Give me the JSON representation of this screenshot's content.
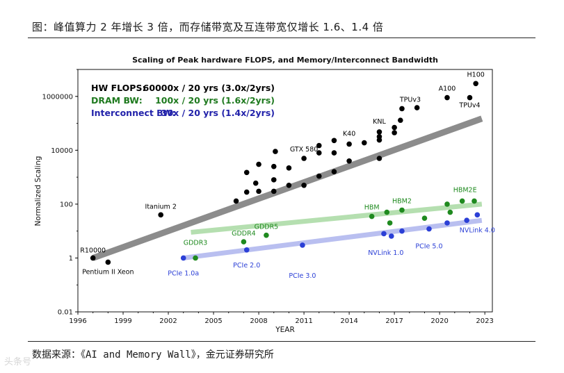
{
  "caption": "图：峰值算力 2 年增长 3 倍，而存储带宽及互连带宽仅增长 1.6、1.4 倍",
  "source": "数据来源：《AI and Memory Wall》，金元证券研究所",
  "watermark": "头条号",
  "chart_data": {
    "type": "scatter",
    "title": "Scaling of Peak hardware FLOPS, and Memory/Interconnect Bandwidth",
    "xlabel": "YEAR",
    "ylabel": "Normalized Scaling",
    "xlim": [
      1996,
      2023.5
    ],
    "ylim": [
      0.01,
      10000000
    ],
    "yscale": "log",
    "xticks": [
      1996,
      1999,
      2002,
      2005,
      2008,
      2011,
      2014,
      2017,
      2020,
      2023
    ],
    "yticks": [
      {
        "value": 0.01,
        "label": "0.01"
      },
      {
        "value": 1,
        "label": "1"
      },
      {
        "value": 100,
        "label": "100"
      },
      {
        "value": 10000,
        "label": "10000"
      },
      {
        "value": 1000000,
        "label": "1000000"
      }
    ],
    "legend": [
      {
        "label": "HW FLOPS:",
        "value": "60000x / 20 yrs (3.0x/2yrs)",
        "color": "#000000"
      },
      {
        "label": "DRAM BW:",
        "value": "100x / 20 yrs (1.6x/2yrs)",
        "color": "#1f7a1f"
      },
      {
        "label": "Interconnect BW:",
        "value": "30x / 20 yrs (1.4x/2yrs)",
        "color": "#2222aa"
      }
    ],
    "series": [
      {
        "name": "HW FLOPS",
        "color": "#000000",
        "trend_color": "#8c8c8c",
        "trend": [
          [
            1997,
            1
          ],
          [
            2022.8,
            150000
          ]
        ],
        "points": [
          {
            "x": 1997,
            "y": 1,
            "label": "R10000",
            "dx": 0,
            "dy": -8,
            "anchor": "middle"
          },
          {
            "x": 1998,
            "y": 0.7,
            "label": "Pentium II Xeon",
            "dx": 0,
            "dy": 17,
            "anchor": "middle"
          },
          {
            "x": 2001.5,
            "y": 40,
            "label": "Itanium 2",
            "dx": 0,
            "dy": -9,
            "anchor": "middle"
          },
          {
            "x": 2006.5,
            "y": 130
          },
          {
            "x": 2007.2,
            "y": 280
          },
          {
            "x": 2007.2,
            "y": 1500
          },
          {
            "x": 2007.8,
            "y": 600
          },
          {
            "x": 2008,
            "y": 300
          },
          {
            "x": 2008,
            "y": 3000
          },
          {
            "x": 2009,
            "y": 800
          },
          {
            "x": 2009,
            "y": 2500
          },
          {
            "x": 2009,
            "y": 300
          },
          {
            "x": 2009.1,
            "y": 9000
          },
          {
            "x": 2010,
            "y": 2200
          },
          {
            "x": 2010,
            "y": 500
          },
          {
            "x": 2011,
            "y": 5000,
            "label": "GTX 580",
            "dx": 0,
            "dy": -10,
            "anchor": "middle"
          },
          {
            "x": 2011,
            "y": 500
          },
          {
            "x": 2012,
            "y": 8000
          },
          {
            "x": 2012,
            "y": 15000
          },
          {
            "x": 2012,
            "y": 1100
          },
          {
            "x": 2013,
            "y": 8000
          },
          {
            "x": 2013,
            "y": 23000
          },
          {
            "x": 2013,
            "y": 1600
          },
          {
            "x": 2014,
            "y": 17000,
            "label": "K40",
            "dx": 0,
            "dy": -12,
            "anchor": "middle"
          },
          {
            "x": 2014,
            "y": 4000
          },
          {
            "x": 2015,
            "y": 19000
          },
          {
            "x": 2016,
            "y": 48000,
            "label": "KNL",
            "dx": 0,
            "dy": -12,
            "anchor": "middle"
          },
          {
            "x": 2016,
            "y": 32000
          },
          {
            "x": 2016,
            "y": 24000
          },
          {
            "x": 2016,
            "y": 5000
          },
          {
            "x": 2017,
            "y": 70000
          },
          {
            "x": 2017,
            "y": 45000
          },
          {
            "x": 2017.4,
            "y": 130000
          },
          {
            "x": 2017.5,
            "y": 350000,
            "label": "TPUv3",
            "dx": 12,
            "dy": -10,
            "anchor": "middle"
          },
          {
            "x": 2018.5,
            "y": 380000
          },
          {
            "x": 2020.5,
            "y": 900000,
            "label": "A100",
            "dx": 0,
            "dy": -10,
            "anchor": "middle"
          },
          {
            "x": 2022,
            "y": 900000,
            "label": "TPUv4",
            "dx": 0,
            "dy": 14,
            "anchor": "middle"
          },
          {
            "x": 2022.4,
            "y": 3000000,
            "label": "H100",
            "dx": 0,
            "dy": -10,
            "anchor": "middle"
          }
        ]
      },
      {
        "name": "DRAM BW",
        "color": "#1f8a1f",
        "trend_color": "#b5dfb0",
        "trend": [
          [
            2003.5,
            9
          ],
          [
            2022.8,
            100
          ]
        ],
        "points": [
          {
            "x": 2003.8,
            "y": 1,
            "label": "GDDR3",
            "dx": 0,
            "dy": -19,
            "anchor": "middle"
          },
          {
            "x": 2007,
            "y": 4,
            "label": "GDDR4",
            "dx": 0,
            "dy": -9,
            "anchor": "middle"
          },
          {
            "x": 2008.5,
            "y": 7,
            "label": "GDDR5",
            "dx": 0,
            "dy": -9,
            "anchor": "middle"
          },
          {
            "x": 2015.5,
            "y": 35,
            "label": "HBM",
            "dx": 0,
            "dy": -10,
            "anchor": "middle"
          },
          {
            "x": 2016.5,
            "y": 50
          },
          {
            "x": 2016.7,
            "y": 20
          },
          {
            "x": 2017.5,
            "y": 60,
            "label": "HBM2",
            "dx": 0,
            "dy": -10,
            "anchor": "middle"
          },
          {
            "x": 2019,
            "y": 30
          },
          {
            "x": 2020.5,
            "y": 100
          },
          {
            "x": 2020.7,
            "y": 50
          },
          {
            "x": 2021.5,
            "y": 130,
            "label": "HBM2E",
            "dx": 4,
            "dy": -13,
            "anchor": "middle"
          },
          {
            "x": 2022.3,
            "y": 130
          }
        ]
      },
      {
        "name": "Interconnect BW",
        "color": "#2b3fd6",
        "trend_color": "#b9bff0",
        "trend": [
          [
            2003,
            1
          ],
          [
            2022.8,
            25
          ]
        ],
        "points": [
          {
            "x": 2003,
            "y": 1,
            "label": "PCIe 1.0a",
            "dx": 0,
            "dy": 25,
            "anchor": "middle"
          },
          {
            "x": 2007.2,
            "y": 2,
            "label": "PCIe 2.0",
            "dx": 0,
            "dy": 25,
            "anchor": "middle"
          },
          {
            "x": 2010.9,
            "y": 3,
            "label": "PCIe 3.0",
            "dx": 0,
            "dy": 47,
            "anchor": "middle"
          },
          {
            "x": 2016.3,
            "y": 8
          },
          {
            "x": 2016.8,
            "y": 6.5,
            "label": "NVLink 1.0",
            "dx": -8,
            "dy": 27,
            "anchor": "middle"
          },
          {
            "x": 2017.5,
            "y": 10
          },
          {
            "x": 2019.3,
            "y": 12,
            "label": "PCIe 5.0",
            "dx": 0,
            "dy": 28,
            "anchor": "middle"
          },
          {
            "x": 2020.5,
            "y": 20
          },
          {
            "x": 2021.8,
            "y": 25
          },
          {
            "x": 2022.5,
            "y": 40,
            "label": "NVLink 4.0",
            "dx": 0,
            "dy": 25,
            "anchor": "middle"
          }
        ]
      }
    ]
  }
}
